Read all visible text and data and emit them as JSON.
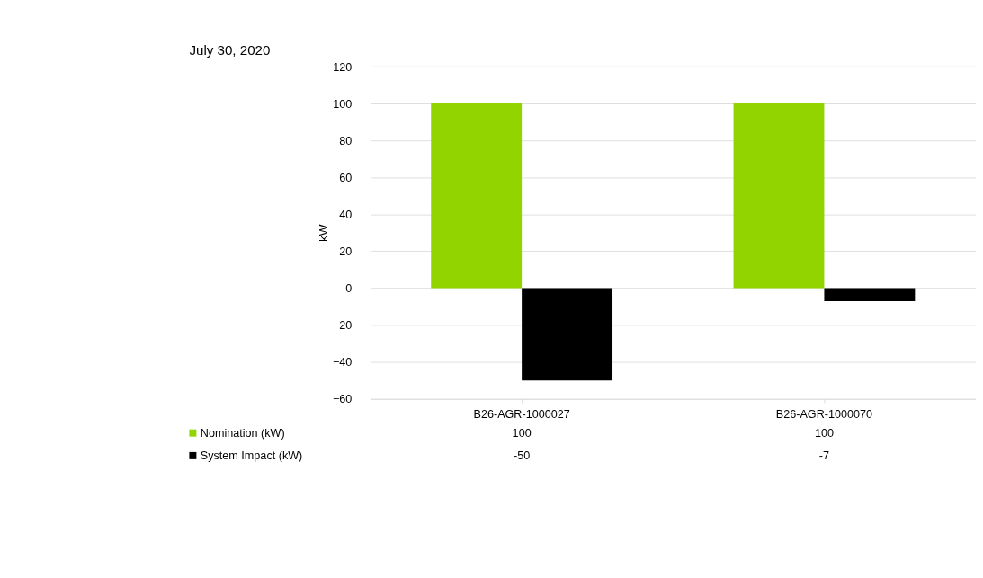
{
  "chart_data": {
    "type": "bar",
    "title": "July 30, 2020",
    "ylabel": "kW",
    "categories": [
      "B26-AGR-1000027",
      "B26-AGR-1000070"
    ],
    "series": [
      {
        "name": "Nomination (kW)",
        "color": "#92d400",
        "values": [
          100,
          100
        ]
      },
      {
        "name": "System Impact (kW)",
        "color": "#000000",
        "values": [
          -50,
          -7
        ]
      }
    ],
    "ylim": [
      -60,
      120
    ],
    "yticks": [
      -60,
      -40,
      -20,
      0,
      20,
      40,
      60,
      80,
      100,
      120
    ],
    "grid": "y",
    "legend": "bottom",
    "data_labels": true
  }
}
